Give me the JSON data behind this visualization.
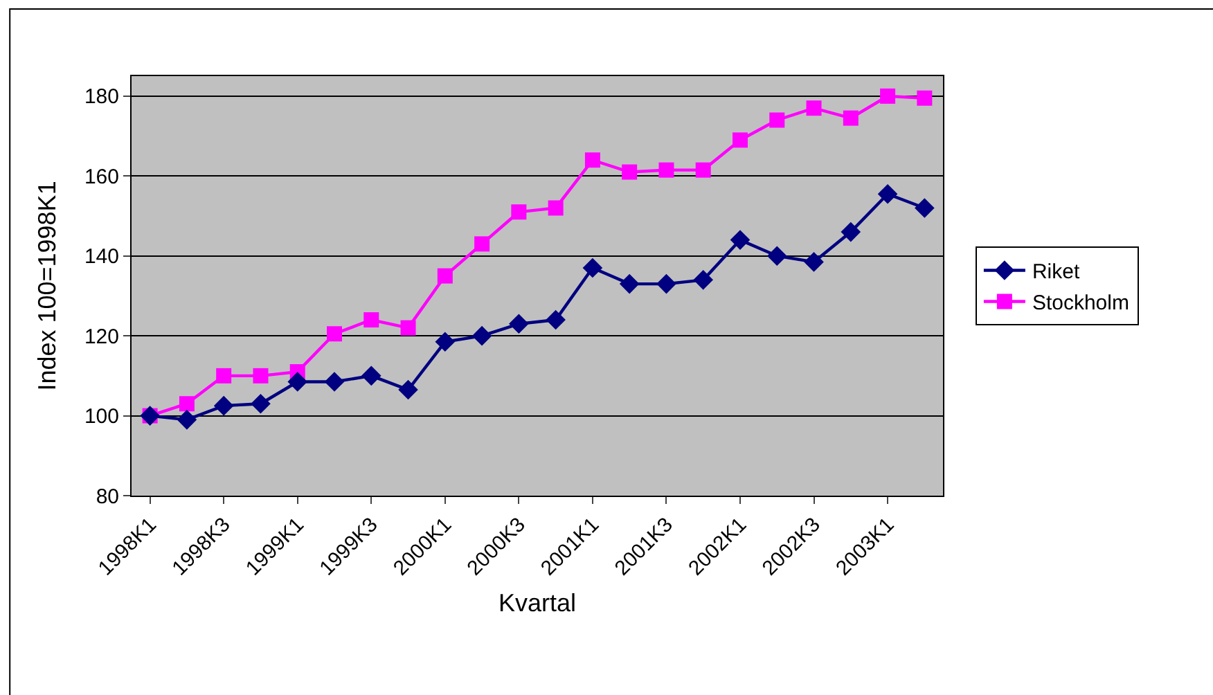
{
  "chart_data": {
    "type": "line",
    "xlabel": "Kvartal",
    "ylabel": "Index 100=1998K1",
    "categories": [
      "1998K1",
      null,
      "1998K3",
      null,
      "1999K1",
      null,
      "1999K3",
      null,
      "2000K1",
      null,
      "2000K3",
      null,
      "2001K1",
      null,
      "2001K3",
      null,
      "2002K1",
      null,
      "2002K3",
      null,
      "2003K1",
      null
    ],
    "series": [
      {
        "name": "Riket",
        "color": "#000080",
        "marker": "diamond",
        "values": [
          100,
          99,
          102.5,
          103,
          108.5,
          108.5,
          110,
          106.5,
          118.5,
          120,
          123,
          124,
          137,
          133,
          133,
          134,
          144,
          140,
          138.5,
          146,
          155.5,
          152
        ]
      },
      {
        "name": "Stockholm",
        "color": "#ff00ff",
        "marker": "square",
        "values": [
          100,
          103,
          110,
          110,
          111,
          120.5,
          124,
          122,
          135,
          143,
          151,
          152,
          164,
          161,
          161.5,
          161.5,
          169,
          174,
          177,
          174.5,
          180,
          179.5
        ]
      }
    ],
    "ylim": [
      80,
      185
    ],
    "yticks": [
      80,
      100,
      120,
      140,
      160,
      180
    ],
    "grid": "y",
    "legend": "right",
    "line_style": "solid"
  }
}
